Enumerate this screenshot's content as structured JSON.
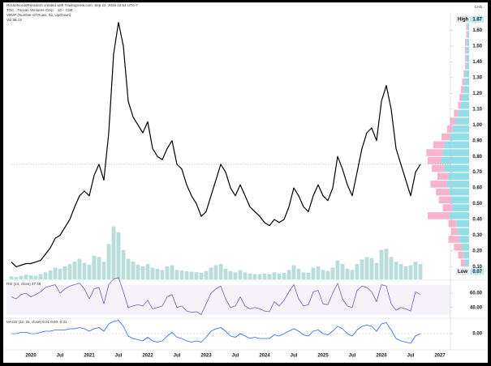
{
  "header": {
    "credit": "RocketsocialResearch created with TradingView.com, Sep 22, 2026 22:53 UTC-7",
    "symbol": "TOC · Tocvan Ventures Corp. · 1D · CSE",
    "currency": "CAD"
  },
  "chart_data": {
    "type": "line",
    "x": [
      "2019-09",
      "2019-10",
      "2019-11",
      "2019-12",
      "2020-01",
      "2020-02",
      "2020-03",
      "2020-04",
      "2020-05",
      "2020-06",
      "2020-07",
      "2020-08",
      "2020-09",
      "2020-10",
      "2020-11",
      "2020-12",
      "2021-01",
      "2021-02",
      "2021-03",
      "2021-04",
      "2021-05",
      "2021-06",
      "2021-07",
      "2021-08",
      "2021-09",
      "2021-10",
      "2021-11",
      "2021-12",
      "2022-01",
      "2022-02",
      "2022-03",
      "2022-04",
      "2022-05",
      "2022-06",
      "2022-07",
      "2022-08",
      "2022-09",
      "2022-10",
      "2022-11",
      "2022-12",
      "2023-01",
      "2023-02",
      "2023-03",
      "2023-04",
      "2023-05",
      "2023-06",
      "2023-07",
      "2023-08",
      "2023-09",
      "2023-10",
      "2023-11",
      "2023-12",
      "2024-01",
      "2024-02",
      "2024-03",
      "2024-04",
      "2024-05",
      "2024-06",
      "2024-07",
      "2024-08",
      "2024-09",
      "2024-10",
      "2024-11",
      "2024-12",
      "2025-01",
      "2025-02",
      "2025-03",
      "2025-04",
      "2025-05",
      "2025-06",
      "2025-07",
      "2025-08",
      "2025-09",
      "2025-10",
      "2025-11",
      "2025-12",
      "2026-01",
      "2026-02",
      "2026-03",
      "2026-04",
      "2026-05",
      "2026-06",
      "2026-07",
      "2026-08",
      "2026-09"
    ],
    "series": [
      {
        "name": "TOC",
        "color": "#000000",
        "values": [
          0.13,
          0.1,
          0.11,
          0.12,
          0.12,
          0.13,
          0.14,
          0.18,
          0.22,
          0.28,
          0.3,
          0.35,
          0.4,
          0.48,
          0.55,
          0.58,
          0.55,
          0.68,
          0.75,
          0.65,
          0.95,
          1.45,
          1.65,
          1.5,
          1.15,
          1.05,
          1.0,
          0.95,
          1.02,
          0.85,
          0.8,
          0.78,
          0.85,
          0.9,
          0.75,
          0.72,
          0.62,
          0.55,
          0.5,
          0.42,
          0.45,
          0.55,
          0.65,
          0.75,
          0.7,
          0.6,
          0.55,
          0.62,
          0.55,
          0.48,
          0.45,
          0.42,
          0.38,
          0.36,
          0.4,
          0.38,
          0.4,
          0.48,
          0.6,
          0.55,
          0.48,
          0.45,
          0.55,
          0.62,
          0.55,
          0.52,
          0.6,
          0.8,
          0.72,
          0.62,
          0.55,
          0.7,
          0.85,
          0.95,
          0.98,
          0.9,
          1.15,
          1.25,
          1.1,
          0.85,
          0.75,
          0.65,
          0.55,
          0.7,
          0.75
        ]
      }
    ],
    "ylim": [
      0.02,
      1.7
    ],
    "yticks": [
      {
        "value": 0.1,
        "label": "0.10"
      },
      {
        "value": 0.2,
        "label": "0.20"
      },
      {
        "value": 0.3,
        "label": "0.30"
      },
      {
        "value": 0.4,
        "label": "0.40"
      },
      {
        "value": 0.5,
        "label": "0.50"
      },
      {
        "value": 0.6,
        "label": "0.60"
      },
      {
        "value": 0.7,
        "label": "0.70"
      },
      {
        "value": 0.8,
        "label": "0.80"
      },
      {
        "value": 0.9,
        "label": "0.90"
      },
      {
        "value": 1.0,
        "label": "1.00"
      },
      {
        "value": 1.1,
        "label": "1.10"
      },
      {
        "value": 1.2,
        "label": "1.20"
      },
      {
        "value": 1.3,
        "label": "1.30"
      },
      {
        "value": 1.4,
        "label": "1.40"
      },
      {
        "value": 1.5,
        "label": "1.50"
      },
      {
        "value": 1.6,
        "label": "1.60"
      }
    ],
    "xticks": [
      {
        "value": "2020-01",
        "label": "2020"
      },
      {
        "value": "2020-07",
        "label": "Jul"
      },
      {
        "value": "2021-01",
        "label": "2021"
      },
      {
        "value": "2021-07",
        "label": "Jul"
      },
      {
        "value": "2022-01",
        "label": "2022"
      },
      {
        "value": "2022-07",
        "label": "Jul"
      },
      {
        "value": "2023-01",
        "label": "2023"
      },
      {
        "value": "2023-07",
        "label": "Jul"
      },
      {
        "value": "2024-01",
        "label": "2024"
      },
      {
        "value": "2024-07",
        "label": "Jul"
      },
      {
        "value": "2025-01",
        "label": "2025"
      },
      {
        "value": "2025-07",
        "label": "Jul"
      },
      {
        "value": "2026-01",
        "label": "2026"
      },
      {
        "value": "2026-07",
        "label": "Jul"
      },
      {
        "value": "2027-01",
        "label": "2027"
      }
    ],
    "high": {
      "label": "High",
      "value": 1.67
    },
    "low": {
      "label": "Low",
      "value": 0.07
    },
    "volume": {
      "label": "Vol 98.13",
      "color": "#b9ddd9",
      "ylim": [
        0,
        4500
      ],
      "values": [
        50,
        40,
        60,
        80,
        70,
        60,
        90,
        120,
        150,
        200,
        180,
        220,
        260,
        300,
        350,
        280,
        250,
        400,
        380,
        300,
        600,
        900,
        800,
        500,
        350,
        300,
        250,
        220,
        260,
        200,
        180,
        160,
        220,
        240,
        160,
        150,
        140,
        130,
        120,
        110,
        140,
        200,
        240,
        260,
        180,
        140,
        120,
        160,
        120,
        100,
        90,
        90,
        100,
        90,
        120,
        100,
        110,
        160,
        240,
        180,
        120,
        110,
        200,
        220,
        160,
        140,
        200,
        320,
        260,
        180,
        160,
        260,
        340,
        380,
        360,
        280,
        500,
        520,
        380,
        300,
        260,
        220,
        240,
        300,
        260
      ]
    },
    "profile": {
      "label": "VRVP (Number Of Rows, 62, Up/Down)",
      "up_color": "#7fd8e4",
      "down_color": "#f4a6c4",
      "levels": [
        0.1,
        0.15,
        0.2,
        0.25,
        0.3,
        0.35,
        0.4,
        0.45,
        0.5,
        0.55,
        0.6,
        0.65,
        0.7,
        0.75,
        0.8,
        0.85,
        0.9,
        0.95,
        1.0,
        1.05,
        1.1,
        1.15,
        1.2,
        1.25,
        1.3,
        1.35,
        1.4,
        1.45,
        1.5,
        1.55,
        1.6
      ],
      "up": [
        3,
        4,
        5,
        7,
        8,
        9,
        14,
        12,
        13,
        14,
        16,
        15,
        18,
        20,
        19,
        18,
        14,
        12,
        10,
        8,
        6,
        5,
        4,
        3,
        3,
        2,
        2,
        2,
        2,
        1,
        1
      ],
      "down": [
        3,
        4,
        6,
        8,
        5,
        6,
        16,
        7,
        9,
        10,
        12,
        8,
        9,
        10,
        12,
        8,
        6,
        4,
        4,
        3,
        2,
        2,
        2,
        2,
        1,
        1,
        1,
        1,
        1,
        1,
        1
      ]
    },
    "rsi": {
      "label": "RSI (14, close) 47.48",
      "color": "#7e57c2",
      "ylim": [
        26,
        76
      ],
      "yticks": [
        {
          "value": 40,
          "label": "40.00"
        },
        {
          "value": 60,
          "label": "60.00"
        }
      ],
      "values": [
        55,
        52,
        58,
        60,
        55,
        58,
        62,
        68,
        70,
        72,
        60,
        66,
        70,
        72,
        74,
        66,
        52,
        66,
        68,
        45,
        72,
        80,
        82,
        62,
        40,
        42,
        44,
        42,
        50,
        38,
        40,
        42,
        55,
        58,
        40,
        42,
        35,
        33,
        34,
        30,
        45,
        60,
        66,
        70,
        52,
        40,
        42,
        55,
        42,
        38,
        40,
        38,
        35,
        34,
        48,
        42,
        50,
        62,
        72,
        52,
        42,
        44,
        62,
        64,
        45,
        44,
        60,
        74,
        52,
        42,
        40,
        64,
        70,
        68,
        62,
        48,
        72,
        70,
        45,
        36,
        40,
        38,
        35,
        62,
        58
      ]
    },
    "macd": {
      "label": "MACD (12, 26, close) 0.01 0.00 -0.01",
      "color": "#2962ff",
      "ylim": [
        -0.12,
        0.12
      ],
      "yticks": [
        {
          "value": 0,
          "label": "0.00"
        }
      ],
      "values": [
        0,
        0,
        0.01,
        0.01,
        0,
        0,
        0.01,
        0.02,
        0.02,
        0.03,
        0.03,
        0.03,
        0.04,
        0.04,
        0.05,
        0.04,
        0.02,
        0.04,
        0.05,
        0.02,
        0.08,
        0.1,
        0.11,
        0.06,
        -0.02,
        -0.04,
        -0.05,
        -0.06,
        -0.03,
        -0.06,
        -0.07,
        -0.06,
        -0.02,
        0.01,
        -0.03,
        -0.04,
        -0.06,
        -0.07,
        -0.06,
        -0.07,
        -0.03,
        0.02,
        0.04,
        0.05,
        0.02,
        -0.02,
        -0.03,
        0,
        -0.02,
        -0.04,
        -0.03,
        -0.04,
        -0.04,
        -0.04,
        -0.01,
        -0.02,
        0,
        0.02,
        0.04,
        0.02,
        -0.01,
        -0.02,
        0.02,
        0.03,
        0,
        -0.01,
        0.02,
        0.06,
        0.04,
        0,
        -0.02,
        0.03,
        0.06,
        0.07,
        0.06,
        0.02,
        0.08,
        0.09,
        0.03,
        -0.04,
        -0.06,
        -0.07,
        -0.08,
        -0.02,
        0
      ]
    }
  }
}
